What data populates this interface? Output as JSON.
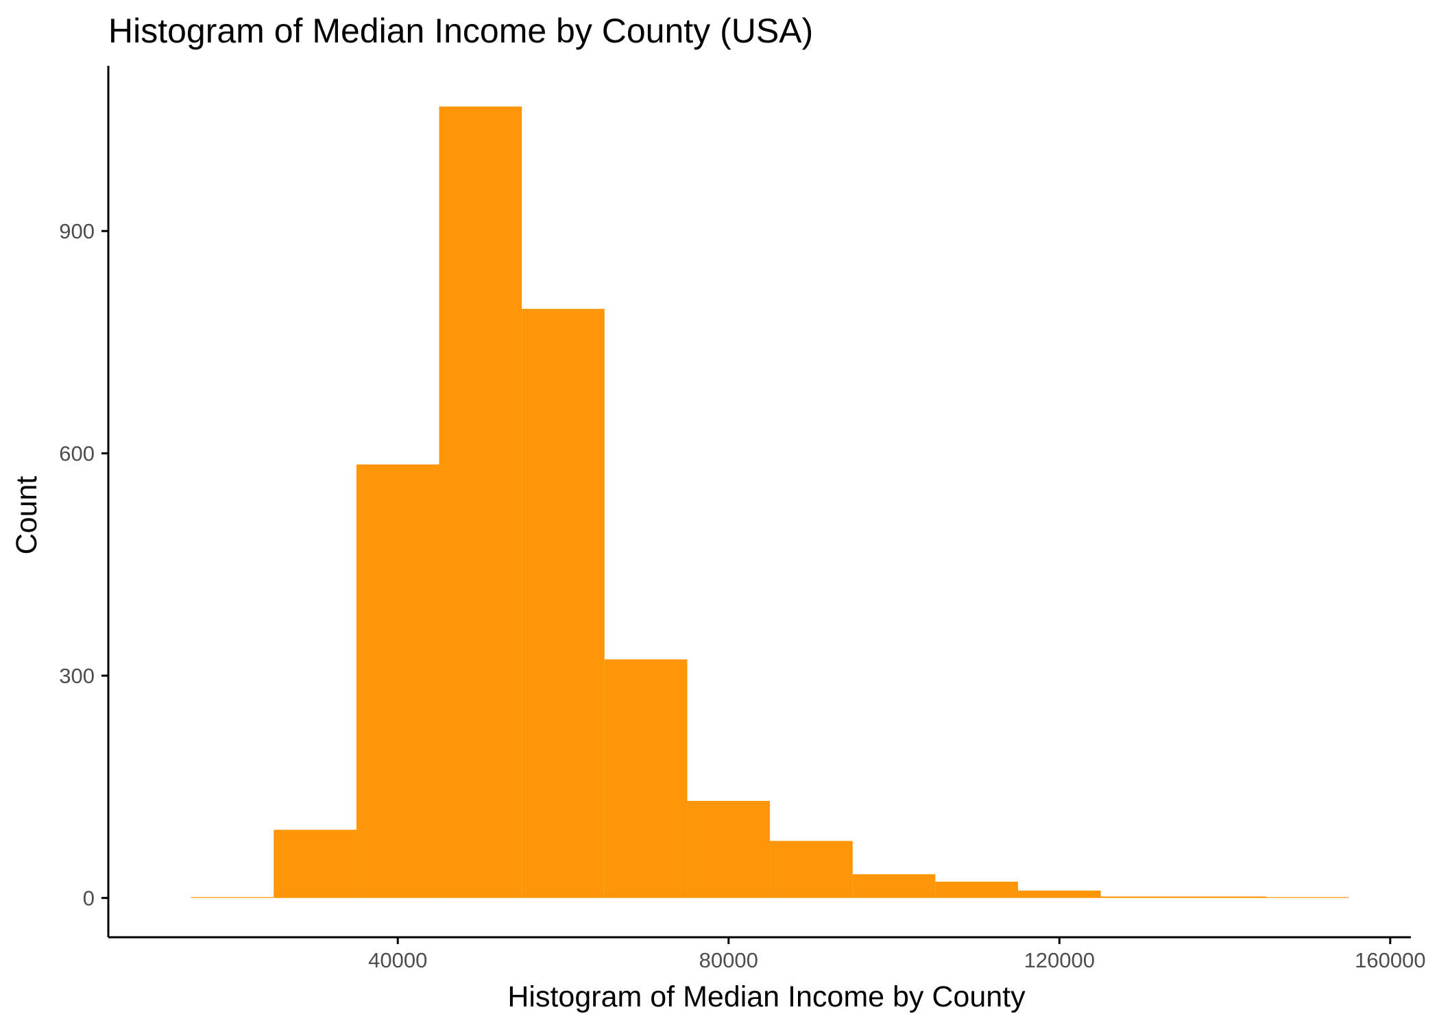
{
  "chart_data": {
    "type": "bar",
    "title": "Histogram of Median Income by County (USA)",
    "xlabel": "Histogram of Median Income by County",
    "ylabel": "Count",
    "bar_color": "#FF9508",
    "binwidth": 10000,
    "bins": [
      {
        "start": 15000,
        "end": 25000,
        "count": 1
      },
      {
        "start": 25000,
        "end": 35000,
        "count": 92
      },
      {
        "start": 35000,
        "end": 45000,
        "count": 585
      },
      {
        "start": 45000,
        "end": 55000,
        "count": 1068
      },
      {
        "start": 55000,
        "end": 65000,
        "count": 795
      },
      {
        "start": 65000,
        "end": 75000,
        "count": 322
      },
      {
        "start": 75000,
        "end": 85000,
        "count": 131
      },
      {
        "start": 85000,
        "end": 95000,
        "count": 77
      },
      {
        "start": 95000,
        "end": 105000,
        "count": 32
      },
      {
        "start": 105000,
        "end": 115000,
        "count": 22
      },
      {
        "start": 115000,
        "end": 125000,
        "count": 10
      },
      {
        "start": 125000,
        "end": 135000,
        "count": 2
      },
      {
        "start": 135000,
        "end": 145000,
        "count": 2
      },
      {
        "start": 145000,
        "end": 155000,
        "count": 1
      }
    ],
    "xlim": [
      5000,
      162500
    ],
    "ylim": [
      -53,
      1123
    ],
    "x_ticks": [
      40000,
      80000,
      120000,
      160000
    ],
    "x_tick_labels": [
      "40000",
      "80000",
      "120000",
      "160000"
    ],
    "y_ticks": [
      0,
      300,
      600,
      900
    ],
    "y_tick_labels": [
      "0",
      "300",
      "600",
      "900"
    ],
    "grid": false
  }
}
